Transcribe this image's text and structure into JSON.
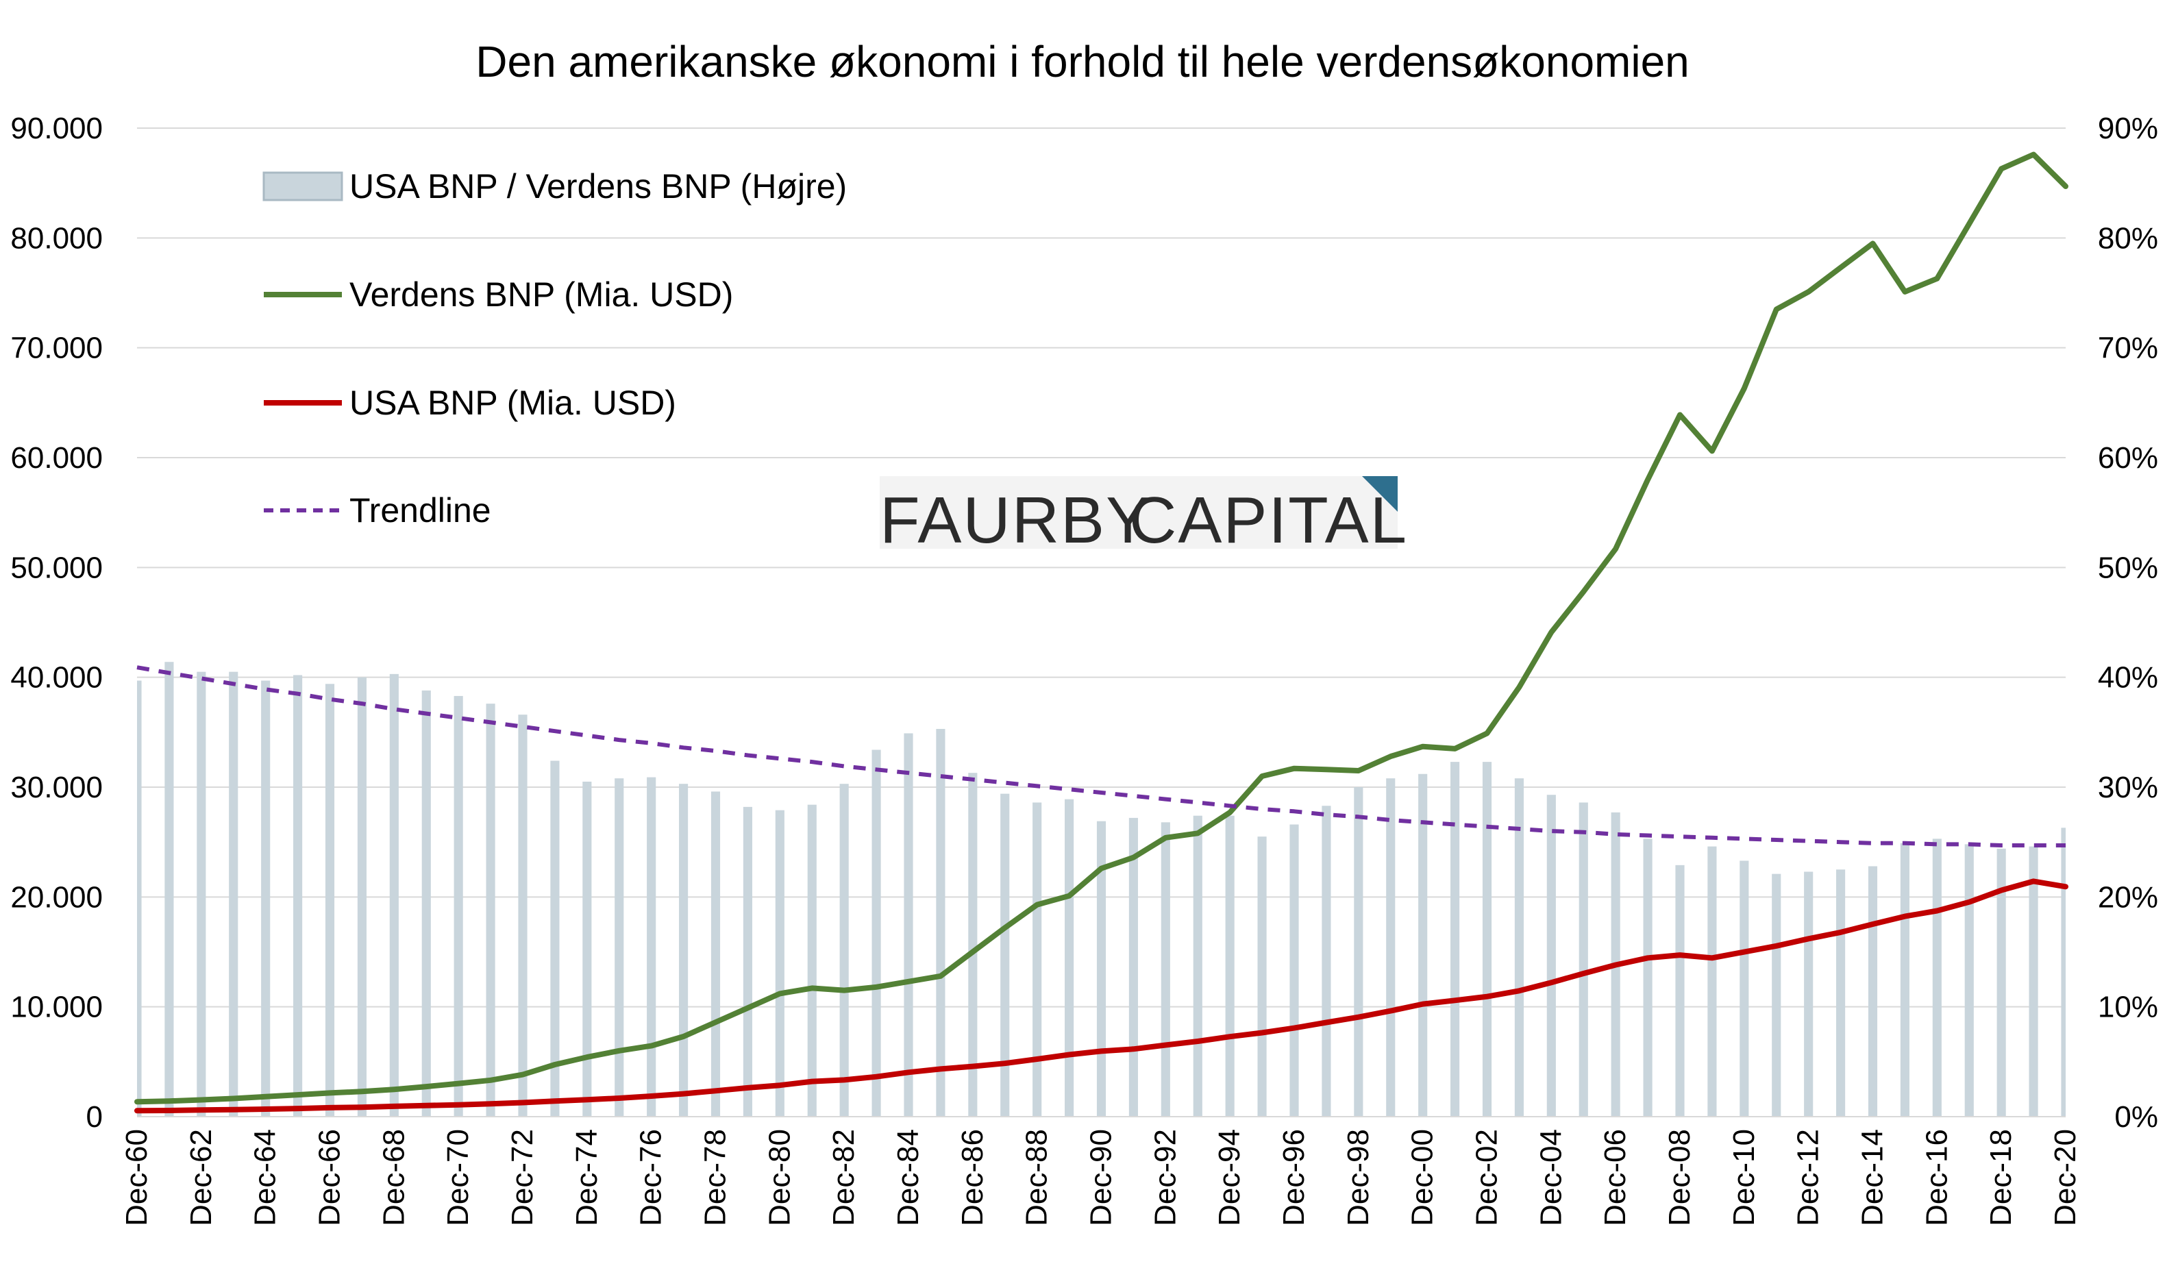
{
  "chart_data": {
    "type": "bar",
    "title": "Den amerikanske økonomi i forhold til hele verdensøkonomien",
    "xlabel": "",
    "ylabel_left": "",
    "ylabel_right": "",
    "ylim_left": [
      0,
      90000
    ],
    "ylim_right": [
      0,
      90
    ],
    "y_left_ticks": [
      "0",
      "10.000",
      "20.000",
      "30.000",
      "40.000",
      "50.000",
      "60.000",
      "70.000",
      "80.000",
      "90.000"
    ],
    "y_right_ticks": [
      "0%",
      "10%",
      "20%",
      "30%",
      "40%",
      "50%",
      "60%",
      "70%",
      "80%",
      "90%"
    ],
    "x_tick_labels": [
      "Dec-60",
      "Dec-62",
      "Dec-64",
      "Dec-66",
      "Dec-68",
      "Dec-70",
      "Dec-72",
      "Dec-74",
      "Dec-76",
      "Dec-78",
      "Dec-80",
      "Dec-82",
      "Dec-84",
      "Dec-86",
      "Dec-88",
      "Dec-90",
      "Dec-92",
      "Dec-94",
      "Dec-96",
      "Dec-98",
      "Dec-00",
      "Dec-02",
      "Dec-04",
      "Dec-06",
      "Dec-08",
      "Dec-10",
      "Dec-12",
      "Dec-14",
      "Dec-16",
      "Dec-18",
      "Dec-20"
    ],
    "x": [
      1960,
      1961,
      1962,
      1963,
      1964,
      1965,
      1966,
      1967,
      1968,
      1969,
      1970,
      1971,
      1972,
      1973,
      1974,
      1975,
      1976,
      1977,
      1978,
      1979,
      1980,
      1981,
      1982,
      1983,
      1984,
      1985,
      1986,
      1987,
      1988,
      1989,
      1990,
      1991,
      1992,
      1993,
      1994,
      1995,
      1996,
      1997,
      1998,
      1999,
      2000,
      2001,
      2002,
      2003,
      2004,
      2005,
      2006,
      2007,
      2008,
      2009,
      2010,
      2011,
      2012,
      2013,
      2014,
      2015,
      2016,
      2017,
      2018,
      2019,
      2020
    ],
    "legend_position": "top-left",
    "series": [
      {
        "name": "USA BNP / Verdens BNP (Højre)",
        "kind": "bar",
        "axis": "right",
        "unit": "%",
        "color": "#c9d5dc",
        "values": [
          39.7,
          41.4,
          40.5,
          40.5,
          39.7,
          40.2,
          39.4,
          40.0,
          40.3,
          38.8,
          38.3,
          37.6,
          36.6,
          32.4,
          30.5,
          30.8,
          30.9,
          30.3,
          29.6,
          28.2,
          27.9,
          28.4,
          30.3,
          33.4,
          34.9,
          35.3,
          31.3,
          29.4,
          28.6,
          28.9,
          26.9,
          27.2,
          26.8,
          27.4,
          27.4,
          25.5,
          26.6,
          28.3,
          30.0,
          30.8,
          31.2,
          32.3,
          32.3,
          30.8,
          29.3,
          28.6,
          27.7,
          25.3,
          22.9,
          24.6,
          23.3,
          22.1,
          22.3,
          22.5,
          22.8,
          24.9,
          25.3,
          24.8,
          24.4,
          24.6,
          26.3
        ]
      },
      {
        "name": "Verdens BNP (Mia. USD)",
        "kind": "line",
        "axis": "left",
        "color": "#538135",
        "values": [
          1360,
          1420,
          1530,
          1650,
          1820,
          1990,
          2160,
          2290,
          2480,
          2740,
          3020,
          3320,
          3830,
          4740,
          5420,
          6000,
          6450,
          7300,
          8600,
          9900,
          11200,
          11700,
          11500,
          11800,
          12300,
          12800,
          15000,
          17200,
          19300,
          20100,
          22600,
          23600,
          25400,
          25800,
          27700,
          31000,
          31700,
          31600,
          31500,
          32800,
          33700,
          33500,
          34900,
          39100,
          44100,
          47800,
          51700,
          58000,
          63900,
          60600,
          66300,
          73500,
          75100,
          77300,
          79500,
          75100,
          76300,
          81300,
          86300,
          87600,
          84700
        ]
      },
      {
        "name": "USA BNP (Mia. USD)",
        "kind": "line",
        "axis": "left",
        "color": "#c00000",
        "values": [
          543,
          563,
          605,
          638,
          685,
          743,
          815,
          861,
          942,
          1019,
          1073,
          1164,
          1279,
          1425,
          1545,
          1685,
          1873,
          2081,
          2352,
          2627,
          2857,
          3207,
          3344,
          3634,
          4037,
          4339,
          4580,
          4855,
          5236,
          5642,
          5963,
          6158,
          6520,
          6859,
          7287,
          7640,
          8073,
          8578,
          9063,
          9631,
          10252,
          10582,
          10936,
          11458,
          12214,
          13037,
          13815,
          14452,
          14713,
          14449,
          14992,
          15543,
          16197,
          16785,
          17527,
          18238,
          18745,
          19543,
          20612,
          21433,
          20937
        ]
      },
      {
        "name": "Trendline",
        "kind": "line",
        "axis": "right",
        "unit": "%",
        "color": "#7030a0",
        "dashed": true,
        "values": [
          40.9,
          40.4,
          39.9,
          39.4,
          38.9,
          38.5,
          38.0,
          37.6,
          37.1,
          36.7,
          36.3,
          35.9,
          35.5,
          35.1,
          34.7,
          34.3,
          34.0,
          33.6,
          33.3,
          32.9,
          32.6,
          32.3,
          31.9,
          31.6,
          31.3,
          31.0,
          30.7,
          30.4,
          30.1,
          29.8,
          29.5,
          29.2,
          28.9,
          28.6,
          28.3,
          28.0,
          27.8,
          27.5,
          27.3,
          27.0,
          26.8,
          26.6,
          26.4,
          26.2,
          26.0,
          25.9,
          25.7,
          25.6,
          25.5,
          25.4,
          25.3,
          25.2,
          25.1,
          25.0,
          24.9,
          24.9,
          24.8,
          24.8,
          24.7,
          24.7,
          24.7
        ]
      }
    ],
    "grid": true
  },
  "watermark": {
    "text_bold": "FAURBY",
    "text_light": "CAPITAL",
    "accent_color": "#2e6f8e"
  }
}
